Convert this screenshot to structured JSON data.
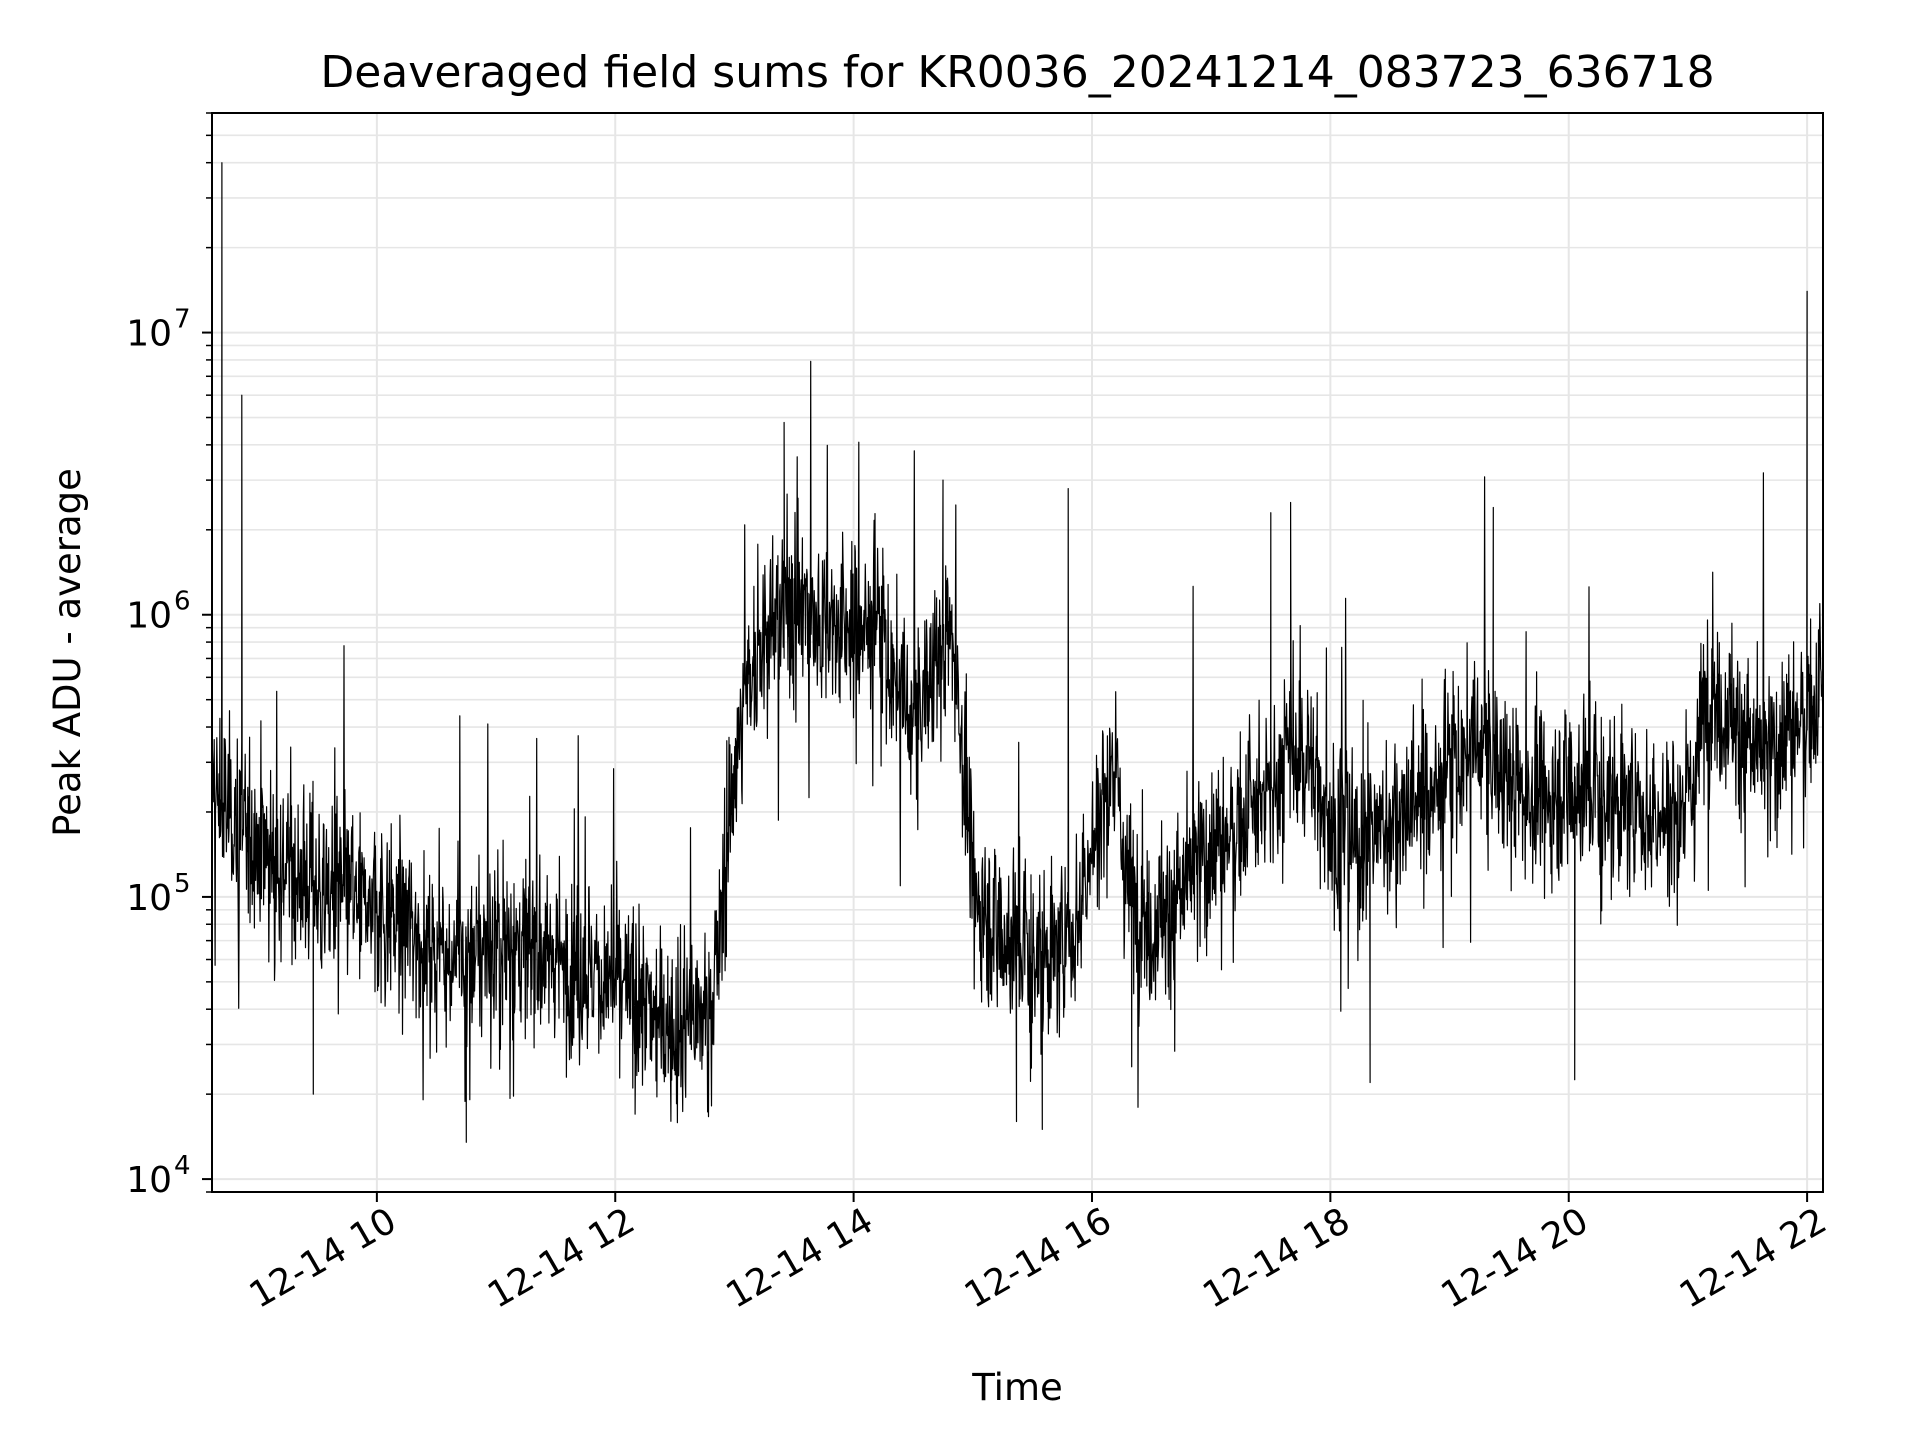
{
  "chart_data": {
    "type": "line",
    "title": "Deaveraged field sums for KR0036_20241214_083723_636718",
    "xlabel": "Time",
    "ylabel": "Peak ADU - average",
    "yscale": "log",
    "ylim": [
      9000,
      60000000
    ],
    "xlim": [
      "2024-12-14T08:37",
      "2024-12-14T22:08"
    ],
    "x_ticks": [
      "12-14 10",
      "12-14 12",
      "12-14 14",
      "12-14 16",
      "12-14 18",
      "12-14 20",
      "12-14 22"
    ],
    "y_ticks": [
      10000,
      100000,
      1000000,
      10000000
    ],
    "y_tick_labels": [
      {
        "base": "10",
        "exp": "4"
      },
      {
        "base": "10",
        "exp": "5"
      },
      {
        "base": "10",
        "exp": "6"
      },
      {
        "base": "10",
        "exp": "7"
      }
    ],
    "grid": true,
    "line_color": "#000000",
    "grid_color": "#e6e6e6",
    "series": [
      {
        "time": [
          "08:37",
          "08:40",
          "08:45",
          "08:50",
          "08:55",
          "09:00",
          "09:10",
          "09:20",
          "09:30",
          "09:45",
          "10:00",
          "10:15",
          "10:30",
          "10:45",
          "11:00",
          "11:15",
          "11:30",
          "11:45",
          "12:00",
          "12:15",
          "12:30",
          "12:45",
          "12:50",
          "13:00",
          "13:10",
          "13:20",
          "13:30",
          "13:40",
          "13:50",
          "14:00",
          "14:10",
          "14:20",
          "14:30",
          "14:40",
          "14:50",
          "15:00",
          "15:10",
          "15:20",
          "15:30",
          "15:40",
          "15:50",
          "16:00",
          "16:10",
          "16:20",
          "16:30",
          "16:40",
          "16:50",
          "17:00",
          "17:10",
          "17:20",
          "17:30",
          "17:40",
          "17:50",
          "18:00",
          "18:15",
          "18:30",
          "18:45",
          "19:00",
          "19:15",
          "19:30",
          "19:45",
          "20:00",
          "20:15",
          "20:30",
          "20:45",
          "21:00",
          "21:10",
          "21:20",
          "21:30",
          "21:40",
          "21:50",
          "22:00",
          "22:08"
        ],
        "values": [
          250000,
          220000,
          200000,
          190000,
          170000,
          160000,
          140000,
          120000,
          110000,
          100000,
          90000,
          80000,
          65000,
          60000,
          70000,
          65000,
          60000,
          55000,
          50000,
          40000,
          35000,
          38000,
          45000,
          300000,
          700000,
          900000,
          1200000,
          1000000,
          900000,
          850000,
          1000000,
          600000,
          400000,
          650000,
          900000,
          110000,
          80000,
          70000,
          65000,
          60000,
          70000,
          150000,
          300000,
          100000,
          80000,
          90000,
          120000,
          150000,
          170000,
          200000,
          220000,
          350000,
          300000,
          180000,
          150000,
          190000,
          220000,
          280000,
          350000,
          260000,
          220000,
          250000,
          240000,
          200000,
          190000,
          210000,
          550000,
          450000,
          350000,
          300000,
          400000,
          450000,
          500000
        ]
      }
    ],
    "spikes": [
      {
        "time": "08:42",
        "value": 40000000
      },
      {
        "time": "08:52",
        "value": 6000000
      },
      {
        "time": "13:25",
        "value": 4800000
      },
      {
        "time": "14:45",
        "value": 3000000
      },
      {
        "time": "15:48",
        "value": 2800000
      },
      {
        "time": "17:30",
        "value": 2300000
      },
      {
        "time": "17:40",
        "value": 2500000
      },
      {
        "time": "19:22",
        "value": 2400000
      },
      {
        "time": "22:00",
        "value": 14000000
      }
    ],
    "dips": [
      {
        "time": "09:28",
        "value": 20000
      },
      {
        "time": "10:45",
        "value": 13500
      },
      {
        "time": "12:10",
        "value": 17000
      },
      {
        "time": "15:22",
        "value": 16000
      },
      {
        "time": "15:35",
        "value": 15000
      },
      {
        "time": "16:20",
        "value": 25000
      },
      {
        "time": "18:20",
        "value": 22000
      },
      {
        "time": "20:03",
        "value": 22500
      }
    ]
  }
}
